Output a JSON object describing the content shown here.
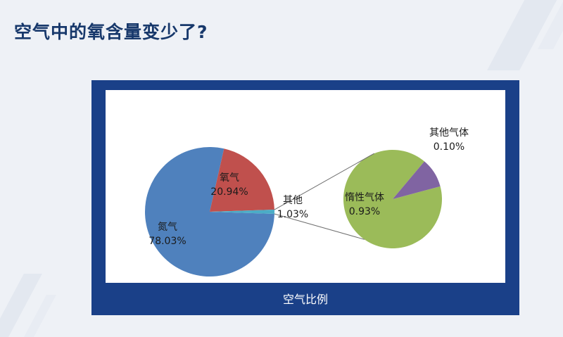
{
  "title": "空气中的氧含量变少了?",
  "chart_data": [
    {
      "type": "pie",
      "slices": [
        {
          "label": "氧气",
          "value": 20.94,
          "value_label": "20.94%",
          "color": "#c0504d"
        },
        {
          "label": "其他",
          "value": 1.03,
          "value_label": "1.03%",
          "color": "#4bacc6"
        },
        {
          "label": "氮气",
          "value": 78.03,
          "value_label": "78.03%",
          "color": "#4f81bd"
        }
      ]
    },
    {
      "type": "pie",
      "slices": [
        {
          "label": "其他气体",
          "value": 0.1,
          "value_label": "0.10%",
          "color": "#8064a2"
        },
        {
          "label": "惰性气体",
          "value": 0.93,
          "value_label": "0.93%",
          "color": "#9bbb59"
        }
      ]
    }
  ],
  "caption": "空气比例"
}
